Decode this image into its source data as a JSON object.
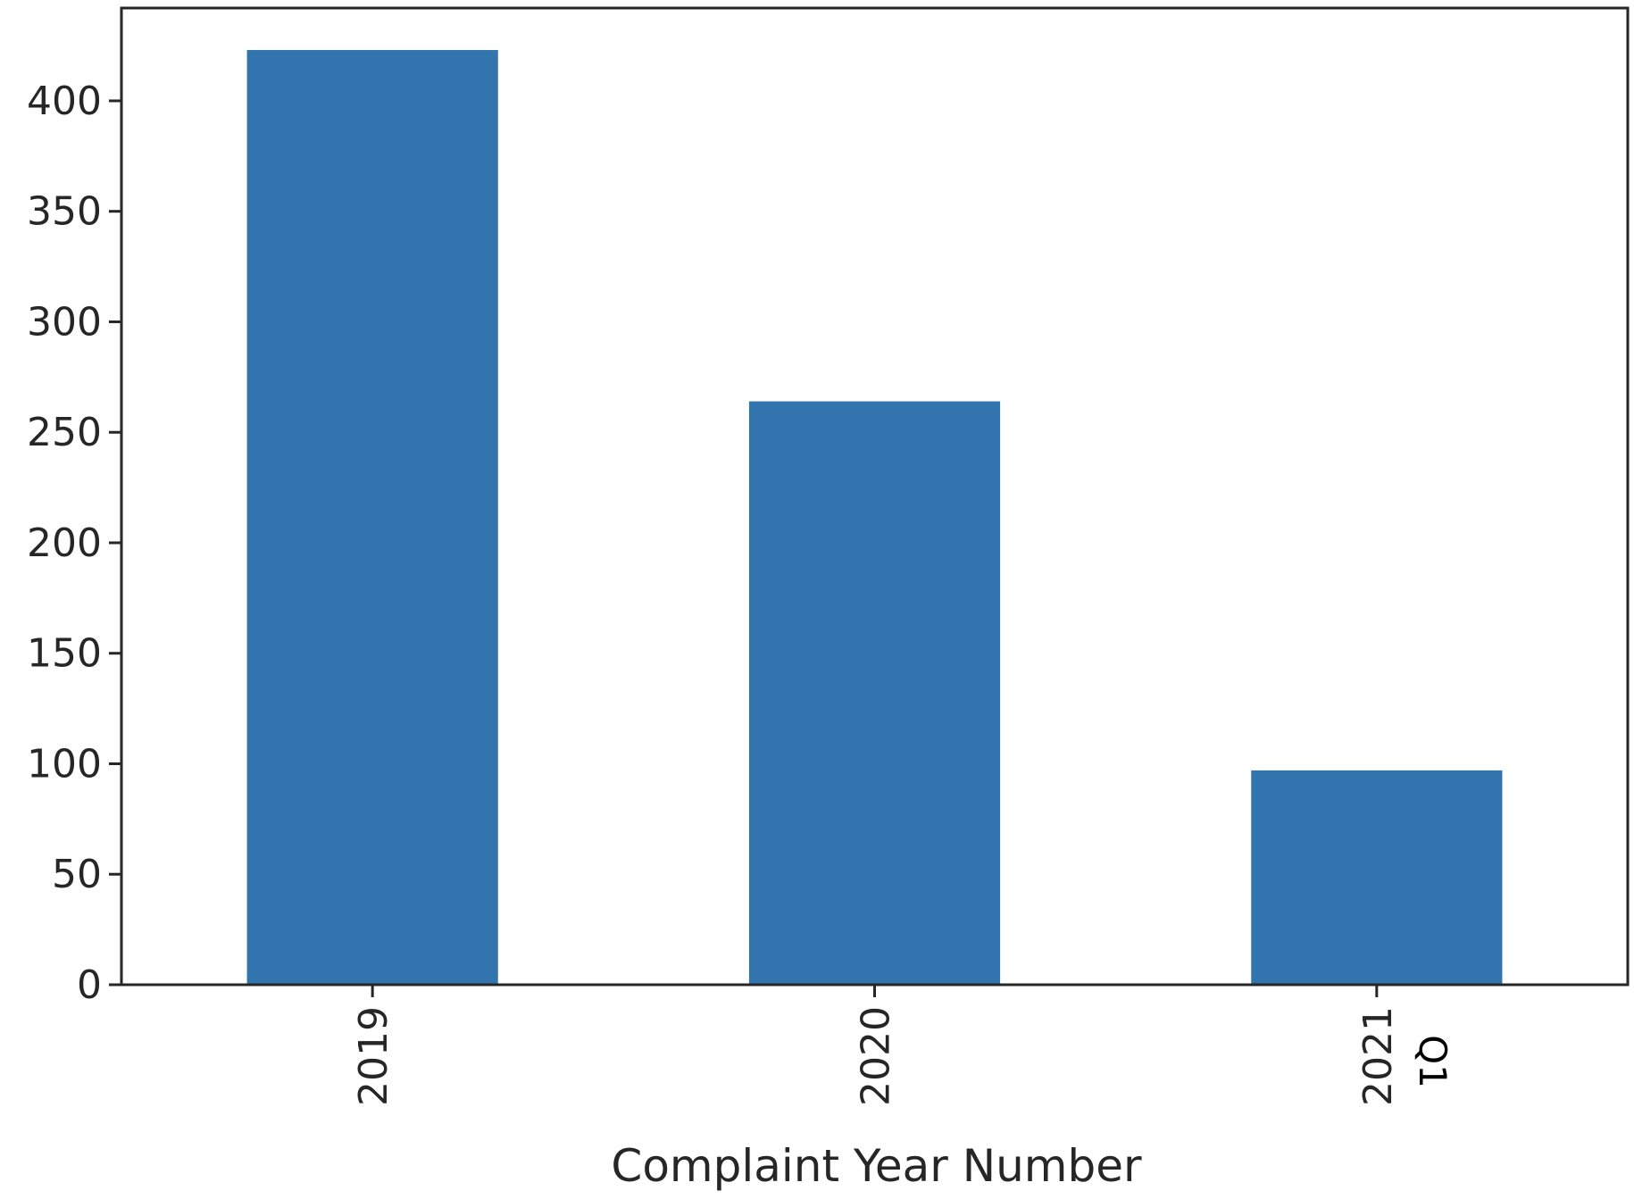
{
  "chart_data": {
    "type": "bar",
    "categories": [
      "2019",
      "2020",
      "2021"
    ],
    "values": [
      423,
      264,
      97
    ],
    "xlabel": "Complaint Year Number",
    "ylabel": "",
    "ylim": [
      0,
      442
    ],
    "yticks": [
      0,
      50,
      100,
      150,
      200,
      250,
      300,
      350,
      400
    ],
    "grid": false,
    "legend": "none",
    "bar_color": "#3174ae",
    "annotations": [
      {
        "text": "Q1",
        "category": "2021"
      }
    ]
  }
}
